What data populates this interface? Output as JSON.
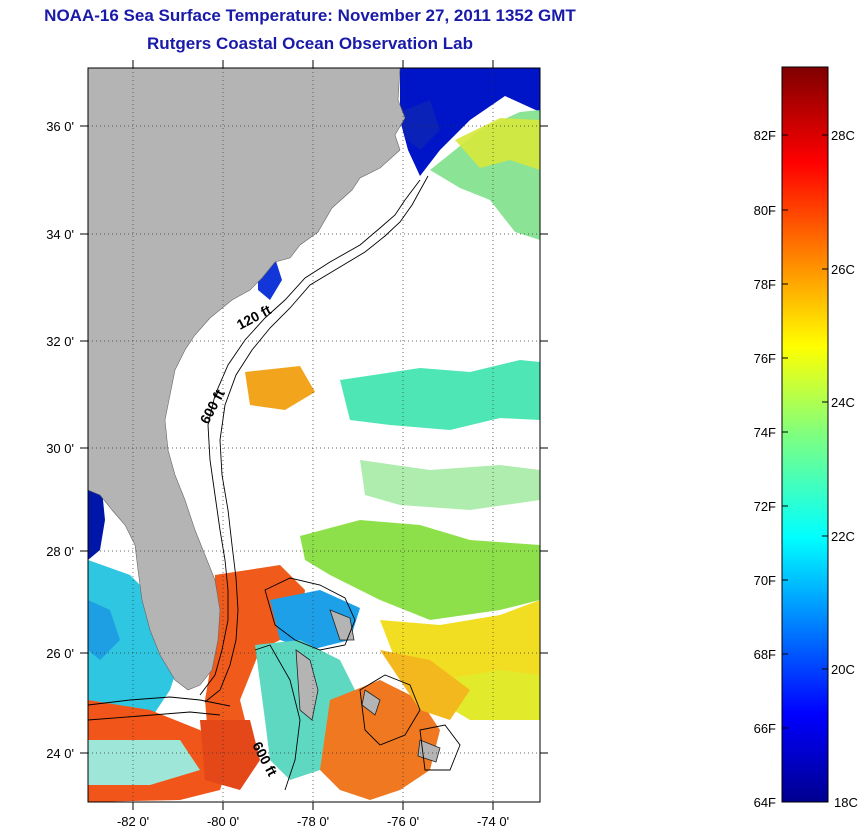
{
  "title": "NOAA-16 Sea Surface Temperature:  November 27, 2011 1352 GMT",
  "subtitle": "Rutgers Coastal Ocean Observation Lab",
  "map": {
    "lat_labels": [
      "36 0'",
      "34 0'",
      "32 0'",
      "30 0'",
      "28 0'",
      "26 0'",
      "24 0'"
    ],
    "lon_labels": [
      "-82 0'",
      "-80 0'",
      "-78 0'",
      "-76 0'",
      "-74 0'"
    ],
    "isobath_labels": [
      "120 ft",
      "600 ft",
      "600 ft"
    ],
    "land_color": "#b4b4b4",
    "no_data_color": "#ffffff"
  },
  "colorbar": {
    "fahrenheit_labels": [
      "82F",
      "80F",
      "78F",
      "76F",
      "74F",
      "72F",
      "70F",
      "68F",
      "66F",
      "64F"
    ],
    "celsius_labels": [
      "28C",
      "26C",
      "24C",
      "22C",
      "20C",
      "18C"
    ],
    "colormap": "jet",
    "min_c": 18,
    "max_c": 29
  }
}
